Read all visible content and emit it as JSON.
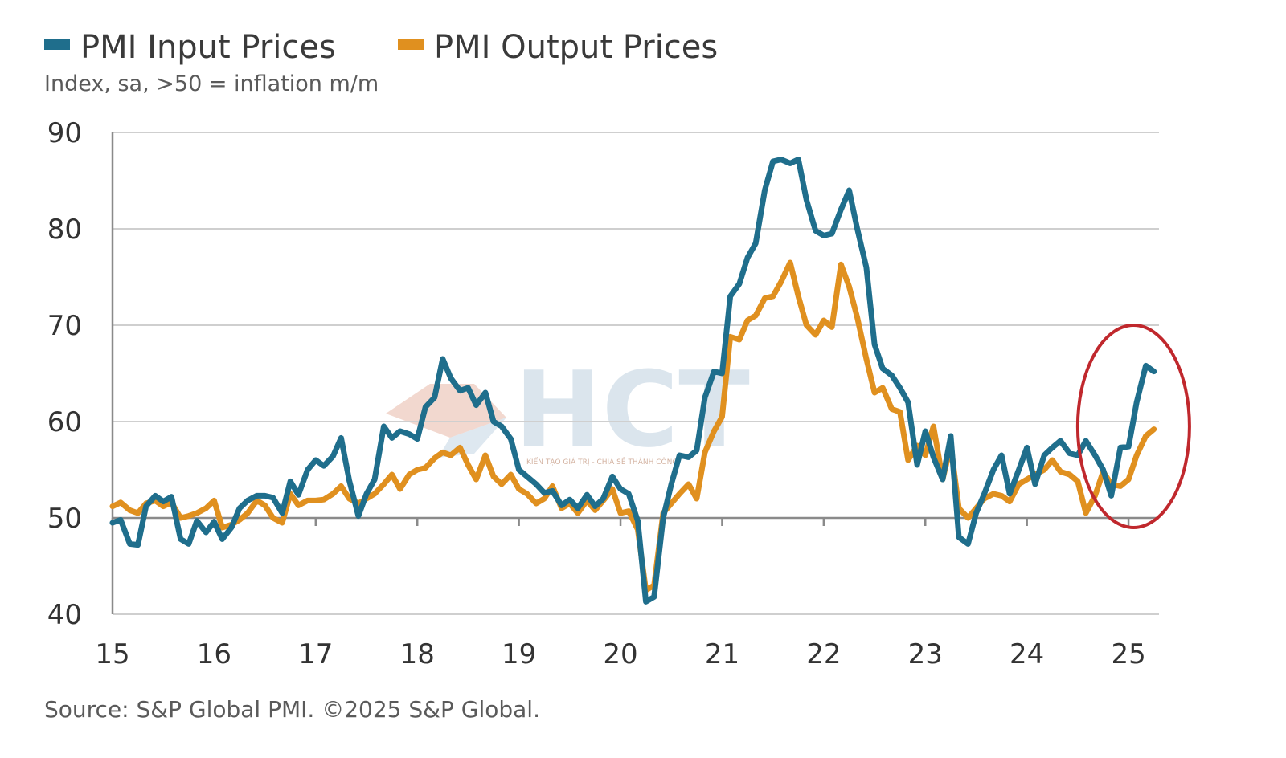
{
  "chart_data": {
    "type": "line",
    "title": "",
    "subtitle": "Index, sa, >50 = inflation m/m",
    "source": "Source: S&P Global PMI. ©2025 S&P Global.",
    "xlabel": "",
    "ylabel": "",
    "ylim": [
      40,
      90
    ],
    "yticks": [
      40,
      50,
      60,
      70,
      80,
      90
    ],
    "xlim": [
      2015,
      2025.3
    ],
    "xticks": [
      {
        "value": 2015,
        "label": "15"
      },
      {
        "value": 2016,
        "label": "16"
      },
      {
        "value": 2017,
        "label": "17"
      },
      {
        "value": 2018,
        "label": "18"
      },
      {
        "value": 2019,
        "label": "19"
      },
      {
        "value": 2020,
        "label": "20"
      },
      {
        "value": 2021,
        "label": "21"
      },
      {
        "value": 2022,
        "label": "22"
      },
      {
        "value": 2023,
        "label": "23"
      },
      {
        "value": 2024,
        "label": "24"
      },
      {
        "value": 2025,
        "label": "25"
      }
    ],
    "grid": "horizontal",
    "legend_position": "top-left",
    "annotations": [
      {
        "type": "ellipse",
        "color": "#c0282d",
        "note": "circled recent rise",
        "x_range": [
          2024.5,
          2025.6
        ],
        "y_range": [
          49,
          70
        ]
      }
    ],
    "series": [
      {
        "name": "PMI Input Prices",
        "color": "#1f6e8c",
        "points": [
          [
            2015.0,
            49.5
          ],
          [
            2015.08,
            49.8
          ],
          [
            2015.17,
            47.3
          ],
          [
            2015.25,
            47.2
          ],
          [
            2015.33,
            51.2
          ],
          [
            2015.42,
            52.3
          ],
          [
            2015.5,
            51.7
          ],
          [
            2015.58,
            52.2
          ],
          [
            2015.67,
            47.8
          ],
          [
            2015.75,
            47.3
          ],
          [
            2015.83,
            49.7
          ],
          [
            2015.92,
            48.5
          ],
          [
            2016.0,
            49.6
          ],
          [
            2016.08,
            47.8
          ],
          [
            2016.17,
            49.0
          ],
          [
            2016.25,
            51.0
          ],
          [
            2016.33,
            51.8
          ],
          [
            2016.42,
            52.3
          ],
          [
            2016.5,
            52.3
          ],
          [
            2016.58,
            52.1
          ],
          [
            2016.67,
            50.5
          ],
          [
            2016.75,
            53.8
          ],
          [
            2016.83,
            52.4
          ],
          [
            2016.92,
            55.0
          ],
          [
            2017.0,
            56.0
          ],
          [
            2017.08,
            55.4
          ],
          [
            2017.17,
            56.4
          ],
          [
            2017.25,
            58.3
          ],
          [
            2017.33,
            53.9
          ],
          [
            2017.42,
            50.2
          ],
          [
            2017.5,
            52.5
          ],
          [
            2017.58,
            54.0
          ],
          [
            2017.67,
            59.5
          ],
          [
            2017.75,
            58.3
          ],
          [
            2017.83,
            59.0
          ],
          [
            2017.92,
            58.7
          ],
          [
            2018.0,
            58.2
          ],
          [
            2018.08,
            61.5
          ],
          [
            2018.17,
            62.5
          ],
          [
            2018.25,
            66.5
          ],
          [
            2018.33,
            64.5
          ],
          [
            2018.42,
            63.2
          ],
          [
            2018.5,
            63.5
          ],
          [
            2018.58,
            61.7
          ],
          [
            2018.67,
            63.0
          ],
          [
            2018.75,
            60.0
          ],
          [
            2018.83,
            59.5
          ],
          [
            2018.92,
            58.2
          ],
          [
            2019.0,
            55.0
          ],
          [
            2019.08,
            54.3
          ],
          [
            2019.17,
            53.5
          ],
          [
            2019.25,
            52.6
          ],
          [
            2019.33,
            52.8
          ],
          [
            2019.42,
            51.3
          ],
          [
            2019.5,
            51.9
          ],
          [
            2019.58,
            51.0
          ],
          [
            2019.67,
            52.4
          ],
          [
            2019.75,
            51.2
          ],
          [
            2019.83,
            52.0
          ],
          [
            2019.92,
            54.3
          ],
          [
            2020.0,
            53.0
          ],
          [
            2020.08,
            52.5
          ],
          [
            2020.17,
            49.7
          ],
          [
            2020.25,
            41.3
          ],
          [
            2020.33,
            41.8
          ],
          [
            2020.42,
            50.0
          ],
          [
            2020.5,
            53.5
          ],
          [
            2020.58,
            56.5
          ],
          [
            2020.67,
            56.3
          ],
          [
            2020.75,
            57.0
          ],
          [
            2020.83,
            62.5
          ],
          [
            2020.92,
            65.2
          ],
          [
            2021.0,
            65.0
          ],
          [
            2021.08,
            73.0
          ],
          [
            2021.17,
            74.3
          ],
          [
            2021.25,
            77.0
          ],
          [
            2021.33,
            78.5
          ],
          [
            2021.42,
            84.0
          ],
          [
            2021.5,
            87.0
          ],
          [
            2021.58,
            87.2
          ],
          [
            2021.67,
            86.8
          ],
          [
            2021.75,
            87.2
          ],
          [
            2021.83,
            83.0
          ],
          [
            2021.92,
            79.8
          ],
          [
            2022.0,
            79.3
          ],
          [
            2022.08,
            79.5
          ],
          [
            2022.17,
            82.0
          ],
          [
            2022.25,
            84.0
          ],
          [
            2022.33,
            80.0
          ],
          [
            2022.42,
            76.0
          ],
          [
            2022.5,
            68.0
          ],
          [
            2022.58,
            65.5
          ],
          [
            2022.67,
            64.8
          ],
          [
            2022.75,
            63.5
          ],
          [
            2022.83,
            62.0
          ],
          [
            2022.92,
            55.5
          ],
          [
            2023.0,
            59.0
          ],
          [
            2023.08,
            56.3
          ],
          [
            2023.17,
            54.0
          ],
          [
            2023.25,
            58.5
          ],
          [
            2023.33,
            48.0
          ],
          [
            2023.42,
            47.3
          ],
          [
            2023.5,
            50.5
          ],
          [
            2023.58,
            52.5
          ],
          [
            2023.67,
            55.0
          ],
          [
            2023.75,
            56.5
          ],
          [
            2023.83,
            52.5
          ],
          [
            2023.92,
            55.0
          ],
          [
            2024.0,
            57.3
          ],
          [
            2024.08,
            53.5
          ],
          [
            2024.17,
            56.5
          ],
          [
            2024.25,
            57.3
          ],
          [
            2024.33,
            58.0
          ],
          [
            2024.42,
            56.7
          ],
          [
            2024.5,
            56.5
          ],
          [
            2024.58,
            58.0
          ],
          [
            2024.67,
            56.5
          ],
          [
            2024.75,
            55.0
          ],
          [
            2024.83,
            52.3
          ],
          [
            2024.92,
            57.3
          ],
          [
            2025.0,
            57.4
          ],
          [
            2025.08,
            62.0
          ],
          [
            2025.17,
            65.8
          ],
          [
            2025.25,
            65.2
          ]
        ]
      },
      {
        "name": "PMI Output Prices",
        "color": "#e0901f",
        "points": [
          [
            2015.0,
            51.2
          ],
          [
            2015.08,
            51.6
          ],
          [
            2015.17,
            50.8
          ],
          [
            2015.25,
            50.5
          ],
          [
            2015.33,
            51.5
          ],
          [
            2015.42,
            51.8
          ],
          [
            2015.5,
            51.2
          ],
          [
            2015.58,
            51.6
          ],
          [
            2015.67,
            50.0
          ],
          [
            2015.75,
            50.2
          ],
          [
            2015.83,
            50.5
          ],
          [
            2015.92,
            51.0
          ],
          [
            2016.0,
            51.8
          ],
          [
            2016.08,
            49.0
          ],
          [
            2016.17,
            49.3
          ],
          [
            2016.25,
            49.8
          ],
          [
            2016.33,
            50.5
          ],
          [
            2016.42,
            51.8
          ],
          [
            2016.5,
            51.3
          ],
          [
            2016.58,
            50.0
          ],
          [
            2016.67,
            49.5
          ],
          [
            2016.75,
            52.5
          ],
          [
            2016.83,
            51.3
          ],
          [
            2016.92,
            51.8
          ],
          [
            2017.0,
            51.8
          ],
          [
            2017.08,
            51.9
          ],
          [
            2017.17,
            52.5
          ],
          [
            2017.25,
            53.3
          ],
          [
            2017.33,
            52.0
          ],
          [
            2017.42,
            51.5
          ],
          [
            2017.5,
            52.0
          ],
          [
            2017.58,
            52.5
          ],
          [
            2017.67,
            53.5
          ],
          [
            2017.75,
            54.5
          ],
          [
            2017.83,
            53.0
          ],
          [
            2017.92,
            54.5
          ],
          [
            2018.0,
            55.0
          ],
          [
            2018.08,
            55.2
          ],
          [
            2018.17,
            56.2
          ],
          [
            2018.25,
            56.8
          ],
          [
            2018.33,
            56.5
          ],
          [
            2018.42,
            57.3
          ],
          [
            2018.5,
            55.5
          ],
          [
            2018.58,
            54.0
          ],
          [
            2018.67,
            56.5
          ],
          [
            2018.75,
            54.3
          ],
          [
            2018.83,
            53.5
          ],
          [
            2018.92,
            54.5
          ],
          [
            2019.0,
            53.0
          ],
          [
            2019.08,
            52.5
          ],
          [
            2019.17,
            51.5
          ],
          [
            2019.25,
            52.0
          ],
          [
            2019.33,
            53.3
          ],
          [
            2019.42,
            51.0
          ],
          [
            2019.5,
            51.5
          ],
          [
            2019.58,
            50.5
          ],
          [
            2019.67,
            51.8
          ],
          [
            2019.75,
            50.8
          ],
          [
            2019.83,
            51.8
          ],
          [
            2019.92,
            53.0
          ],
          [
            2020.0,
            50.5
          ],
          [
            2020.08,
            50.7
          ],
          [
            2020.17,
            48.8
          ],
          [
            2020.25,
            42.5
          ],
          [
            2020.33,
            43.0
          ],
          [
            2020.42,
            50.5
          ],
          [
            2020.5,
            51.5
          ],
          [
            2020.58,
            52.5
          ],
          [
            2020.67,
            53.5
          ],
          [
            2020.75,
            52.0
          ],
          [
            2020.83,
            56.8
          ],
          [
            2020.92,
            59.0
          ],
          [
            2021.0,
            60.5
          ],
          [
            2021.08,
            68.8
          ],
          [
            2021.17,
            68.5
          ],
          [
            2021.25,
            70.5
          ],
          [
            2021.33,
            71.0
          ],
          [
            2021.42,
            72.8
          ],
          [
            2021.5,
            73.0
          ],
          [
            2021.58,
            74.5
          ],
          [
            2021.67,
            76.5
          ],
          [
            2021.75,
            73.0
          ],
          [
            2021.83,
            70.0
          ],
          [
            2021.92,
            69.0
          ],
          [
            2022.0,
            70.5
          ],
          [
            2022.08,
            69.8
          ],
          [
            2022.17,
            76.3
          ],
          [
            2022.25,
            74.0
          ],
          [
            2022.33,
            70.8
          ],
          [
            2022.42,
            66.5
          ],
          [
            2022.5,
            63.0
          ],
          [
            2022.58,
            63.5
          ],
          [
            2022.67,
            61.3
          ],
          [
            2022.75,
            61.0
          ],
          [
            2022.83,
            56.0
          ],
          [
            2022.92,
            57.5
          ],
          [
            2023.0,
            56.5
          ],
          [
            2023.08,
            59.5
          ],
          [
            2023.17,
            54.0
          ],
          [
            2023.25,
            57.5
          ],
          [
            2023.33,
            51.0
          ],
          [
            2023.42,
            50.0
          ],
          [
            2023.5,
            51.0
          ],
          [
            2023.58,
            52.0
          ],
          [
            2023.67,
            52.5
          ],
          [
            2023.75,
            52.3
          ],
          [
            2023.83,
            51.7
          ],
          [
            2023.92,
            53.5
          ],
          [
            2024.0,
            54.0
          ],
          [
            2024.08,
            54.5
          ],
          [
            2024.17,
            55.0
          ],
          [
            2024.25,
            56.0
          ],
          [
            2024.33,
            54.8
          ],
          [
            2024.42,
            54.5
          ],
          [
            2024.5,
            53.8
          ],
          [
            2024.58,
            50.5
          ],
          [
            2024.67,
            52.3
          ],
          [
            2024.75,
            54.8
          ],
          [
            2024.83,
            53.5
          ],
          [
            2024.92,
            53.3
          ],
          [
            2025.0,
            54.0
          ],
          [
            2025.08,
            56.5
          ],
          [
            2025.17,
            58.5
          ],
          [
            2025.25,
            59.2
          ]
        ]
      }
    ]
  },
  "watermark": {
    "text": "HCT",
    "tagline": "KIẾN TẠO GIÁ TRỊ - CHIA SẺ THÀNH CÔNG"
  }
}
